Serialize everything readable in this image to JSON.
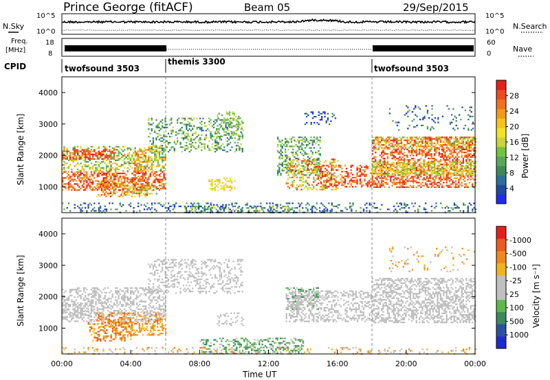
{
  "header": {
    "radar": "Prince George (fitACF)",
    "beam": "Beam 05",
    "date": "29/Sep/2015"
  },
  "top_panels": {
    "nsky_label": "N.Sky",
    "nsky_ticks": [
      "10^5",
      "10^0"
    ],
    "nsearch_label": "N.Search",
    "freq_label_1": "Freq.",
    "freq_label_2": "[MHz]",
    "freq_ticks": [
      "18",
      "8"
    ],
    "nave_label": "Nave",
    "nave_ticks": [
      "60",
      "0"
    ],
    "cpid_label": "CPID",
    "cpid_segments": [
      {
        "name": "twofsound 3503",
        "start": 0,
        "end": 6
      },
      {
        "name": "themis 3300",
        "start": 6,
        "end": 18
      },
      {
        "name": "twofsound 3503",
        "start": 18,
        "end": 24
      }
    ]
  },
  "chart_data": [
    {
      "type": "heatmap",
      "panel": "power",
      "ylabel": "Slant Range [km]",
      "y_ticks": [
        1000,
        2000,
        3000,
        4000
      ],
      "ylim": [
        180,
        4500
      ],
      "xlim": [
        0,
        24
      ],
      "colorbar_label": "Power [dB]",
      "colorbar_ticks": [
        "4",
        "8",
        "12",
        "16",
        "20",
        "24",
        "28"
      ],
      "scale": [
        "#1f2bf5",
        "#1e4ba0",
        "#2c6f98",
        "#3d8a58",
        "#58a85a",
        "#72c43d",
        "#c9d53a",
        "#f2e321",
        "#f5c415",
        "#f49a14",
        "#f2711b",
        "#ee4a1d",
        "#e71f1c"
      ]
    },
    {
      "type": "heatmap",
      "panel": "velocity",
      "ylabel": "Slant Range [km]",
      "y_ticks": [
        1000,
        2000,
        3000,
        4000
      ],
      "ylim": [
        180,
        4500
      ],
      "xlim": [
        0,
        24
      ],
      "xlabel": "Time UT",
      "x_ticks": [
        "00:00",
        "04:00",
        "08:00",
        "12:00",
        "16:00",
        "20:00",
        "00:00"
      ],
      "colorbar_label": "Velocity [m s⁻¹]",
      "colorbar_ticks": [
        "1000",
        "500",
        "100",
        "25",
        "-25",
        "-100",
        "-500",
        "-1000"
      ],
      "scale": [
        "#1f2bd0",
        "#2c4fa5",
        "#3c8860",
        "#5cb84a",
        "#bfbfbf",
        "#bfbfbf",
        "#f2b31a",
        "#f2861b",
        "#ee5a1d",
        "#e71f1c"
      ]
    }
  ],
  "colors": {
    "ground_scatter": "#bfbfbf",
    "axis": "#000000",
    "grid": "#bbbbbb"
  }
}
